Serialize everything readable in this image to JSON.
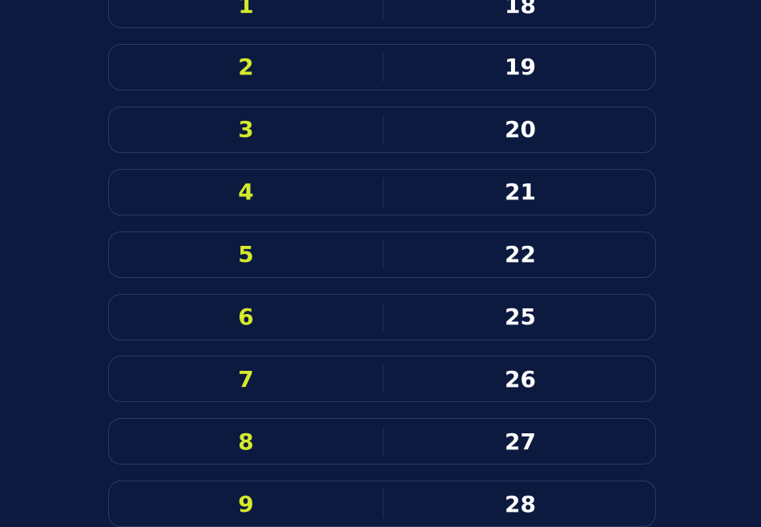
{
  "colors": {
    "background": "#0c1a40",
    "left_text": "#d4ea2c",
    "right_text": "#ffffff",
    "border": "#2a3a66"
  },
  "rows": [
    {
      "left": "1",
      "right": "18"
    },
    {
      "left": "2",
      "right": "19"
    },
    {
      "left": "3",
      "right": "20"
    },
    {
      "left": "4",
      "right": "21"
    },
    {
      "left": "5",
      "right": "22"
    },
    {
      "left": "6",
      "right": "25"
    },
    {
      "left": "7",
      "right": "26"
    },
    {
      "left": "8",
      "right": "27"
    },
    {
      "left": "9",
      "right": "28"
    }
  ]
}
